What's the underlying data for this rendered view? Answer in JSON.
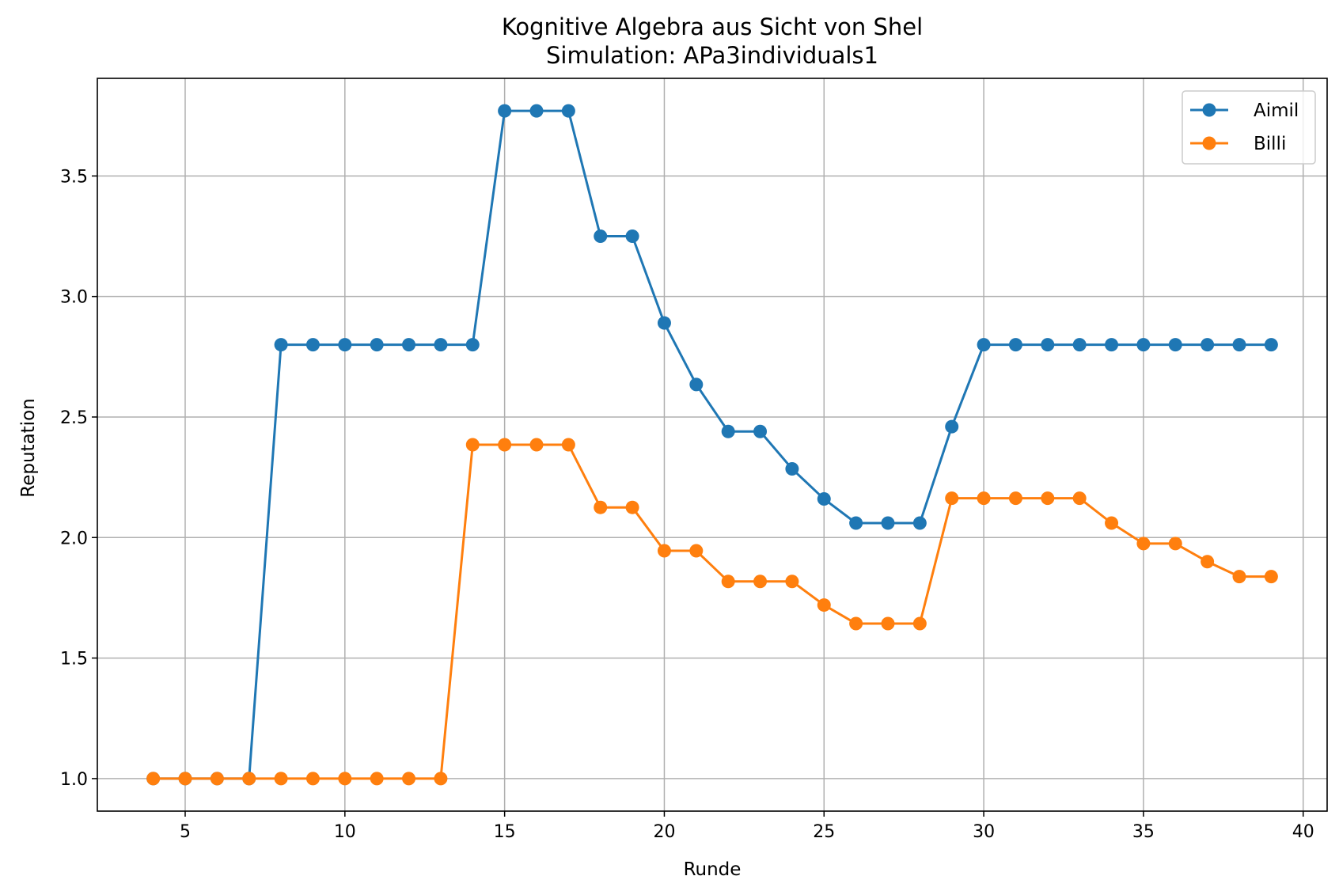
{
  "chart_data": {
    "type": "line",
    "title": "Kognitive Algebra aus Sicht von Shel",
    "subtitle": "Simulation: APa3individuals1",
    "xlabel": "Runde",
    "ylabel": "Reputation",
    "xlim": [
      2.25,
      40.75
    ],
    "ylim": [
      0.865,
      3.905
    ],
    "xticks": [
      5,
      10,
      15,
      20,
      25,
      30,
      35,
      40
    ],
    "yticks": [
      1.0,
      1.5,
      2.0,
      2.5,
      3.0,
      3.5
    ],
    "xtick_labels": [
      "5",
      "10",
      "15",
      "20",
      "25",
      "30",
      "35",
      "40"
    ],
    "ytick_labels": [
      "1.0",
      "1.5",
      "2.0",
      "2.5",
      "3.0",
      "3.5"
    ],
    "grid": true,
    "legend_position": "top-right",
    "x": [
      4,
      5,
      6,
      7,
      8,
      9,
      10,
      11,
      12,
      13,
      14,
      15,
      16,
      17,
      18,
      19,
      20,
      21,
      22,
      23,
      24,
      25,
      26,
      27,
      28,
      29,
      30,
      31,
      32,
      33,
      34,
      35,
      36,
      37,
      38,
      39
    ],
    "series": [
      {
        "name": "Aimil",
        "color": "#1f77b4",
        "values": [
          1.0,
          1.0,
          1.0,
          1.0,
          2.8,
          2.8,
          2.8,
          2.8,
          2.8,
          2.8,
          2.8,
          3.77,
          3.77,
          3.77,
          3.25,
          3.25,
          2.89,
          2.635,
          2.44,
          2.44,
          2.285,
          2.16,
          2.06,
          2.06,
          2.06,
          2.46,
          2.8,
          2.8,
          2.8,
          2.8,
          2.8,
          2.8,
          2.8,
          2.8,
          2.8,
          2.8
        ]
      },
      {
        "name": "Billi",
        "color": "#ff7f0e",
        "values": [
          1.0,
          1.0,
          1.0,
          1.0,
          1.0,
          1.0,
          1.0,
          1.0,
          1.0,
          1.0,
          2.385,
          2.385,
          2.385,
          2.385,
          2.125,
          2.125,
          1.945,
          1.945,
          1.818,
          1.818,
          1.818,
          1.72,
          1.643,
          1.643,
          1.643,
          2.163,
          2.163,
          2.163,
          2.163,
          2.163,
          2.06,
          1.975,
          1.975,
          1.9,
          1.838,
          1.838
        ]
      }
    ]
  }
}
